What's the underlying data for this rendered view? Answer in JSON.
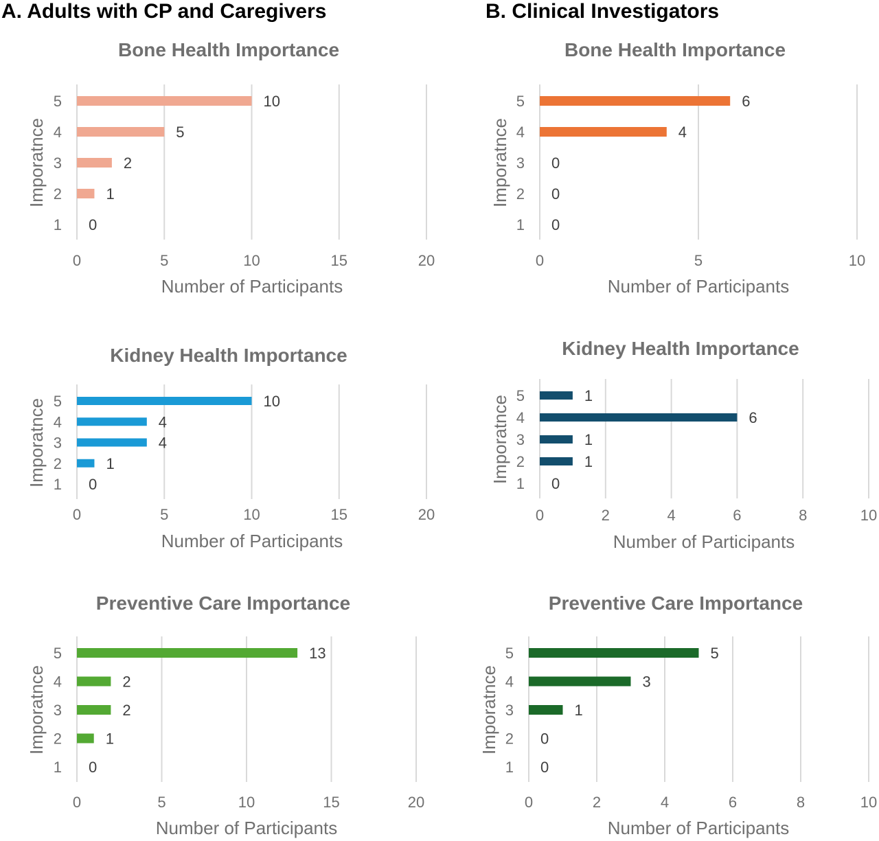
{
  "sections": {
    "a_title": "A. Adults with CP and Caregivers",
    "b_title": "B. Clinical Investigators"
  },
  "chart_data": [
    {
      "type": "bar",
      "orientation": "horizontal",
      "panel": "A",
      "title": "Bone Health Importance",
      "xlabel": "Number of Participants",
      "ylabel": "Imporatnce",
      "categories": [
        "1",
        "2",
        "3",
        "4",
        "5"
      ],
      "values": [
        0,
        1,
        2,
        5,
        10
      ],
      "xlim": [
        0,
        20
      ],
      "xticks": [
        0,
        5,
        10,
        15,
        20
      ],
      "color": "#f0a891",
      "grid": "vertical"
    },
    {
      "type": "bar",
      "orientation": "horizontal",
      "panel": "A",
      "title": "Kidney Health Importance",
      "xlabel": "Number of Participants",
      "ylabel": "Imporatnce",
      "categories": [
        "1",
        "2",
        "3",
        "4",
        "5"
      ],
      "values": [
        0,
        1,
        4,
        4,
        10
      ],
      "xlim": [
        0,
        20
      ],
      "xticks": [
        0,
        5,
        10,
        15,
        20
      ],
      "color": "#1a9ad6",
      "grid": "vertical"
    },
    {
      "type": "bar",
      "orientation": "horizontal",
      "panel": "A",
      "title": "Preventive Care Importance",
      "xlabel": "Number of Participants",
      "ylabel": "Imporatnce",
      "categories": [
        "1",
        "2",
        "3",
        "4",
        "5"
      ],
      "values": [
        0,
        1,
        2,
        2,
        13
      ],
      "xlim": [
        0,
        20
      ],
      "xticks": [
        0,
        5,
        10,
        15,
        20
      ],
      "color": "#53a933",
      "grid": "vertical"
    },
    {
      "type": "bar",
      "orientation": "horizontal",
      "panel": "B",
      "title": "Bone Health Importance",
      "xlabel": "Number of Participants",
      "ylabel": "Imporatnce",
      "categories": [
        "1",
        "2",
        "3",
        "4",
        "5"
      ],
      "values": [
        0,
        0,
        0,
        4,
        6
      ],
      "xlim": [
        0,
        10
      ],
      "xticks": [
        0,
        5,
        10
      ],
      "color": "#ec7435",
      "grid": "vertical"
    },
    {
      "type": "bar",
      "orientation": "horizontal",
      "panel": "B",
      "title": "Kidney Health Importance",
      "xlabel": "Number of Participants",
      "ylabel": "Imporatnce",
      "categories": [
        "1",
        "2",
        "3",
        "4",
        "5"
      ],
      "values": [
        0,
        1,
        1,
        6,
        1
      ],
      "xlim": [
        0,
        10
      ],
      "xticks": [
        0,
        2,
        4,
        6,
        8,
        10
      ],
      "color": "#134e6d",
      "grid": "vertical"
    },
    {
      "type": "bar",
      "orientation": "horizontal",
      "panel": "B",
      "title": "Preventive Care Importance",
      "xlabel": "Number of Participants",
      "ylabel": "Imporatnce",
      "categories": [
        "1",
        "2",
        "3",
        "4",
        "5"
      ],
      "values": [
        0,
        0,
        1,
        3,
        5
      ],
      "xlim": [
        0,
        10
      ],
      "xticks": [
        0,
        2,
        4,
        6,
        8,
        10
      ],
      "color": "#1b6a29",
      "grid": "vertical"
    }
  ]
}
